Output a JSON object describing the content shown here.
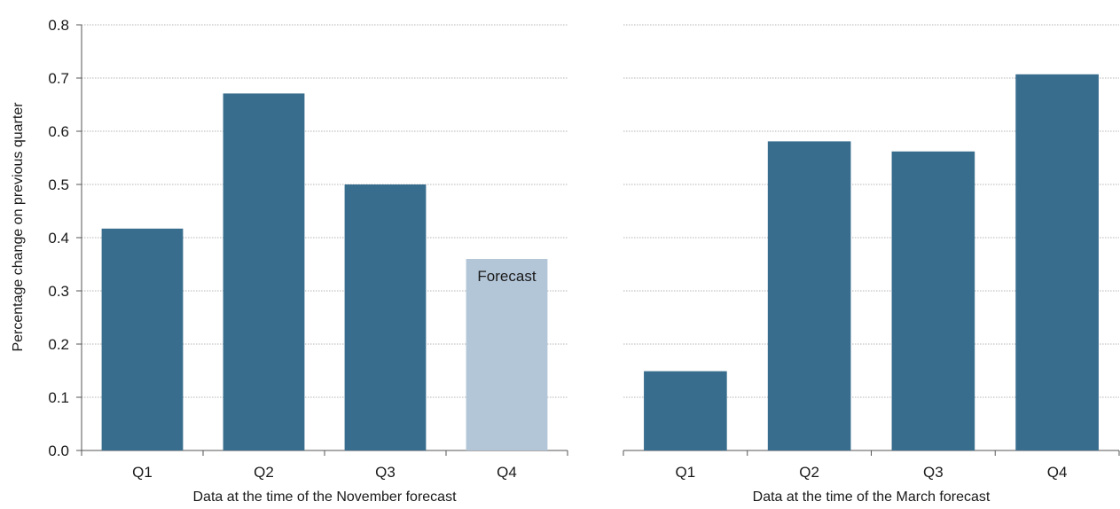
{
  "colors": {
    "actual": "#396d8e",
    "forecast": "#b3c6d8",
    "grid": "#b5b5b5",
    "axis": "#555555"
  },
  "chart_data": [
    {
      "type": "bar",
      "categories": [
        "Q1",
        "Q2",
        "Q3",
        "Q4"
      ],
      "values": [
        0.417,
        0.671,
        0.5,
        0.36
      ],
      "bar_kinds": [
        "actual",
        "actual",
        "actual",
        "forecast"
      ],
      "annotation": "Forecast",
      "annotation_category": "Q4",
      "xlabel": "Data at the time of the November forecast",
      "ylabel": "Percentage change on previous quarter",
      "ylim": [
        0,
        0.8
      ],
      "yticks": [
        "0.0",
        "0.1",
        "0.2",
        "0.3",
        "0.4",
        "0.5",
        "0.6",
        "0.7",
        "0.8"
      ],
      "grid": true
    },
    {
      "type": "bar",
      "categories": [
        "Q1",
        "Q2",
        "Q3",
        "Q4"
      ],
      "values": [
        0.149,
        0.581,
        0.562,
        0.707
      ],
      "bar_kinds": [
        "actual",
        "actual",
        "actual",
        "actual"
      ],
      "xlabel": "Data at the time of the March forecast",
      "ylim": [
        0,
        0.8
      ],
      "grid": true
    }
  ]
}
